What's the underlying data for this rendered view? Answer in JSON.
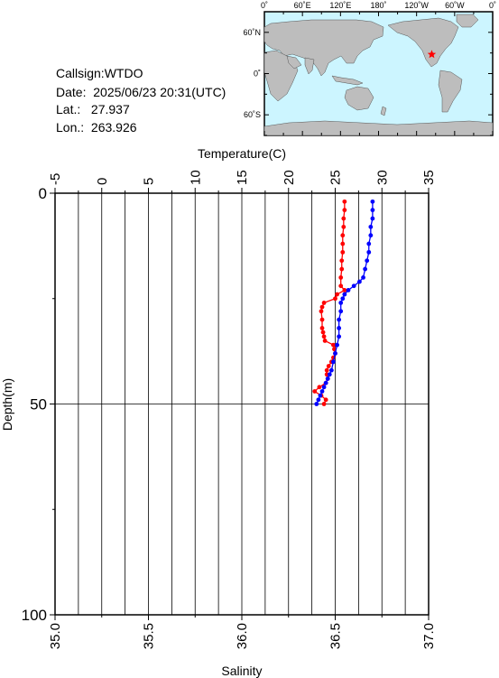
{
  "station": {
    "callsign_label": "Callsign:",
    "callsign": "WTDO",
    "date_label": "Date:",
    "date": "2025/06/23 20:31(UTC)",
    "lat_label": "Lat.:",
    "lat": "27.937",
    "lon_label": "Lon.:",
    "lon": "263.926"
  },
  "map": {
    "lon_ticks": [
      "0˚",
      "60˚E",
      "120˚E",
      "180˚",
      "120˚W",
      "60˚W",
      "0˚"
    ],
    "lat_ticks": [
      "60˚N",
      "0˚",
      "60˚S"
    ],
    "station_marker": {
      "lon": 263.926,
      "lat": 27.937,
      "color": "#ff0000"
    },
    "ocean_color": "#ccf5ff",
    "land_color": "#bdbdbd"
  },
  "chart_data": {
    "type": "line",
    "title": "",
    "xlabel_top": "Temperature(C)",
    "xlabel_bottom": "Salinity",
    "ylabel": "Depth(m)",
    "temperature_ticks": [
      "-5",
      "0",
      "5",
      "10",
      "15",
      "20",
      "25",
      "30",
      "35"
    ],
    "salinity_ticks": [
      "35.0",
      "35.5",
      "36.0",
      "36.5",
      "37.0"
    ],
    "depth_ticks": [
      "0",
      "50",
      "100"
    ],
    "temperature_range": [
      -5,
      35
    ],
    "salinity_range": [
      35.0,
      37.0
    ],
    "depth_range": [
      0,
      100
    ],
    "grid": true,
    "series": [
      {
        "key": "temperature",
        "axis": "top",
        "color": "#ff0000",
        "depth": [
          2,
          4,
          6,
          8,
          10,
          12,
          14,
          16,
          18,
          20,
          22,
          23,
          24,
          25,
          26,
          27,
          28,
          30,
          32,
          33,
          34,
          35,
          36,
          37,
          38,
          39,
          40,
          41,
          42,
          43,
          44,
          45,
          46,
          47,
          48,
          49,
          50
        ],
        "values": [
          26.0,
          26.0,
          25.9,
          25.9,
          25.8,
          25.8,
          25.8,
          25.7,
          25.7,
          25.6,
          25.6,
          26.0,
          25.2,
          25.0,
          23.8,
          23.6,
          23.5,
          23.6,
          23.6,
          23.7,
          23.8,
          23.9,
          24.8,
          24.9,
          25.0,
          24.8,
          24.6,
          24.3,
          24.1,
          24.1,
          24.2,
          24.0,
          23.3,
          22.8,
          23.5,
          24.0,
          23.8
        ]
      },
      {
        "key": "salinity",
        "axis": "bottom",
        "color": "#0000ff",
        "depth": [
          2,
          4,
          6,
          8,
          10,
          12,
          14,
          16,
          18,
          20,
          21,
          22,
          23,
          24,
          25,
          26,
          28,
          30,
          32,
          34,
          36,
          38,
          40,
          42,
          43,
          44,
          45,
          46,
          47,
          48,
          49,
          50
        ],
        "values": [
          36.7,
          36.7,
          36.7,
          36.69,
          36.69,
          36.68,
          36.68,
          36.67,
          36.66,
          36.65,
          36.63,
          36.6,
          36.57,
          36.55,
          36.54,
          36.53,
          36.53,
          36.52,
          36.52,
          36.52,
          36.51,
          36.5,
          36.49,
          36.48,
          36.47,
          36.46,
          36.45,
          36.44,
          36.43,
          36.42,
          36.41,
          36.4
        ]
      }
    ]
  }
}
